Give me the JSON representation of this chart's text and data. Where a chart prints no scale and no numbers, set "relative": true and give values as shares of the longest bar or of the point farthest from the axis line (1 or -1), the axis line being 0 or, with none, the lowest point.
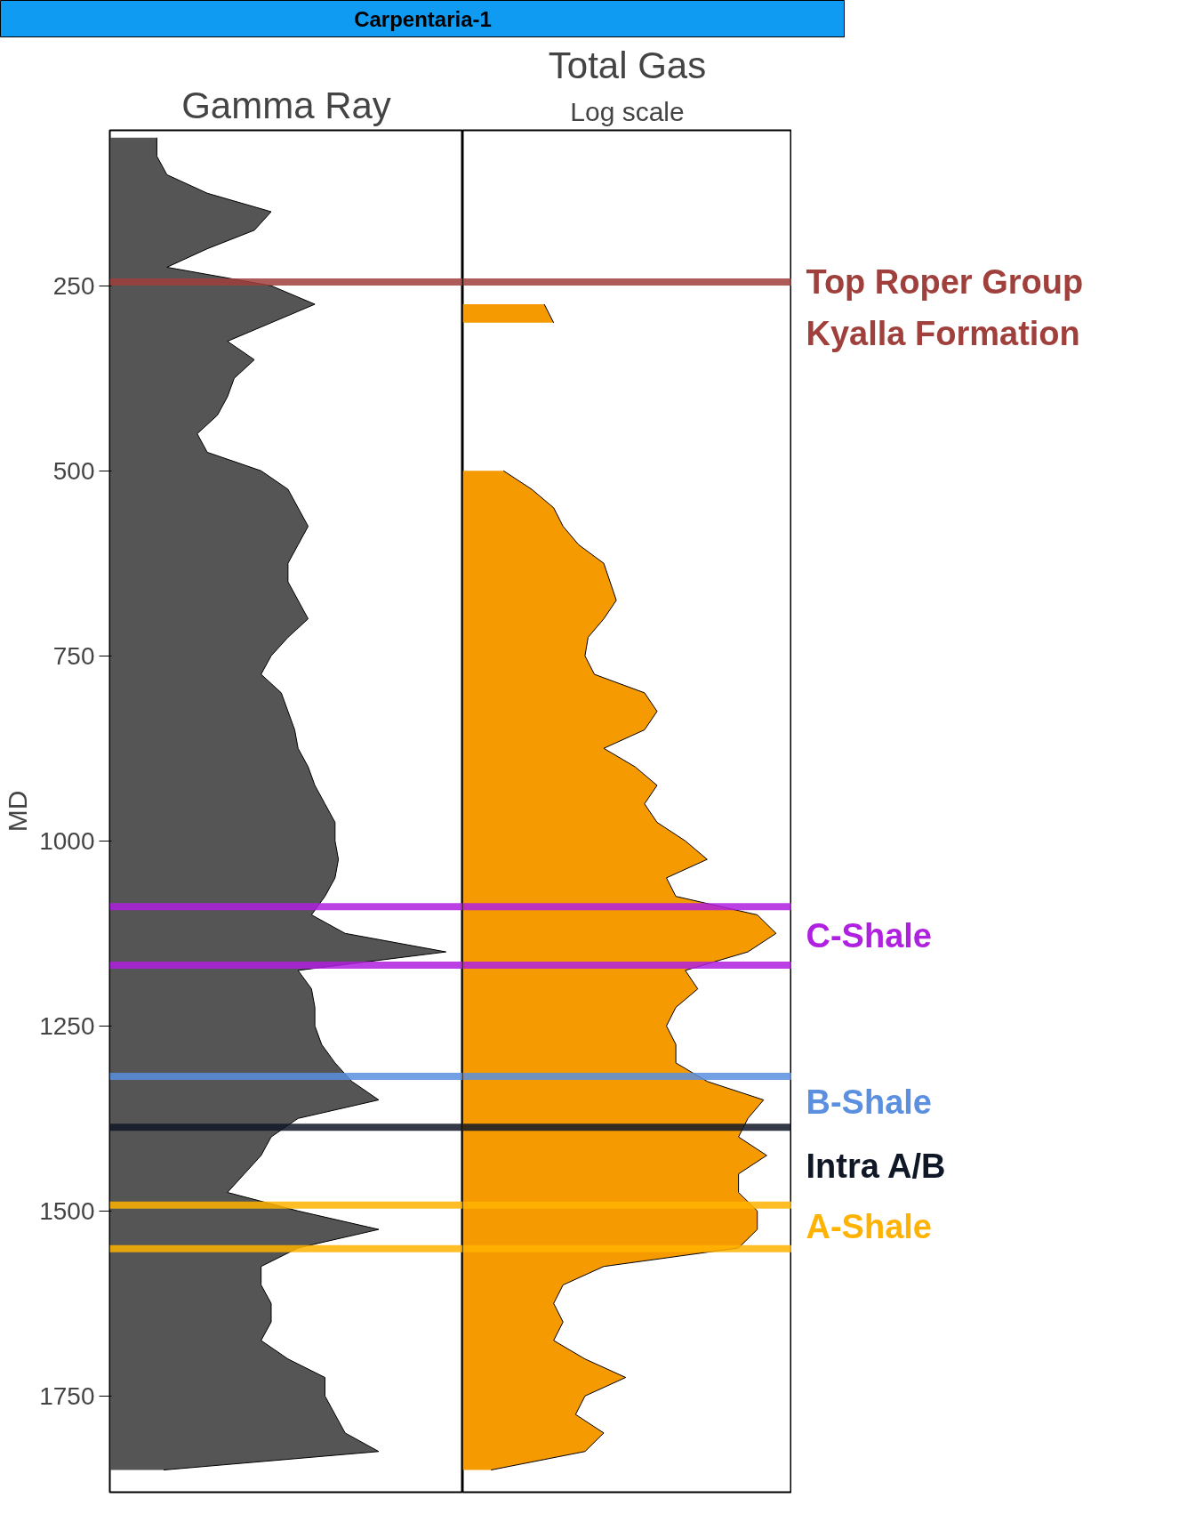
{
  "chart_data": [
    {
      "type": "other",
      "title": "Carpentaria-1",
      "color": "#0f9bf2"
    },
    {
      "type": "area",
      "title": "Gamma Ray",
      "ylabel": "MD",
      "orientation": "horizontal",
      "relative": true,
      "ylim": [
        1880,
        40
      ],
      "yticks": [
        250,
        500,
        750,
        1000,
        1250,
        1500,
        1750
      ],
      "x": [
        50,
        75,
        100,
        125,
        150,
        175,
        200,
        225,
        250,
        275,
        300,
        325,
        350,
        375,
        400,
        425,
        450,
        475,
        500,
        525,
        550,
        575,
        600,
        625,
        650,
        675,
        700,
        725,
        750,
        775,
        800,
        825,
        850,
        875,
        900,
        925,
        950,
        975,
        1000,
        1025,
        1050,
        1075,
        1100,
        1125,
        1150,
        1175,
        1200,
        1225,
        1250,
        1275,
        1300,
        1325,
        1350,
        1375,
        1400,
        1425,
        1450,
        1475,
        1500,
        1525,
        1550,
        1575,
        1600,
        1625,
        1650,
        1675,
        1700,
        1725,
        1750,
        1775,
        1800,
        1825,
        1850
      ],
      "series": [
        {
          "color": "#555555",
          "values": [
            0.14,
            0.14,
            0.17,
            0.29,
            0.48,
            0.43,
            0.29,
            0.17,
            0.48,
            0.61,
            0.48,
            0.35,
            0.43,
            0.37,
            0.35,
            0.32,
            0.26,
            0.29,
            0.45,
            0.53,
            0.56,
            0.59,
            0.56,
            0.53,
            0.53,
            0.56,
            0.59,
            0.53,
            0.48,
            0.45,
            0.51,
            0.53,
            0.55,
            0.56,
            0.59,
            0.61,
            0.64,
            0.67,
            0.67,
            0.68,
            0.67,
            0.64,
            0.6,
            0.7,
            1.0,
            0.56,
            0.6,
            0.61,
            0.61,
            0.63,
            0.67,
            0.72,
            0.8,
            0.56,
            0.48,
            0.45,
            0.4,
            0.35,
            0.56,
            0.8,
            0.56,
            0.45,
            0.45,
            0.48,
            0.48,
            0.45,
            0.53,
            0.64,
            0.64,
            0.67,
            0.7,
            0.8,
            0.16
          ]
        }
      ],
      "ref_lines": [
        {
          "axis": "y",
          "value": 245,
          "color": "#a0403c"
        },
        {
          "axis": "y",
          "value": 1089,
          "color": "#b020e0"
        },
        {
          "axis": "y",
          "value": 1168,
          "color": "#b020e0"
        },
        {
          "axis": "y",
          "value": 1318,
          "color": "#5b8fe0"
        },
        {
          "axis": "y",
          "value": 1387,
          "color": "#101828"
        },
        {
          "axis": "y",
          "value": 1492,
          "color": "#ffb300"
        },
        {
          "axis": "y",
          "value": 1551,
          "color": "#ffb300"
        }
      ]
    },
    {
      "type": "area",
      "title": "Total Gas",
      "subtitle": "Log scale",
      "orientation": "horizontal",
      "relative": true,
      "tick_labels": false,
      "ylim": [
        1880,
        40
      ],
      "x": [
        275,
        300,
        325,
        350,
        375,
        400,
        425,
        450,
        475,
        500,
        525,
        550,
        575,
        600,
        625,
        650,
        675,
        700,
        725,
        750,
        775,
        800,
        825,
        850,
        875,
        900,
        925,
        950,
        975,
        1000,
        1025,
        1050,
        1075,
        1100,
        1125,
        1150,
        1175,
        1200,
        1225,
        1250,
        1275,
        1300,
        1325,
        1350,
        1375,
        1400,
        1425,
        1450,
        1475,
        1500,
        1525,
        1550,
        1575,
        1600,
        1625,
        1650,
        1675,
        1700,
        1725,
        1750,
        1775,
        1800,
        1825,
        1850
      ],
      "series": [
        {
          "color": "#f59a00",
          "values": [
            0.26,
            0.29,
            null,
            null,
            null,
            null,
            null,
            null,
            null,
            0.13,
            0.22,
            0.29,
            0.32,
            0.37,
            0.45,
            0.47,
            0.49,
            0.45,
            0.4,
            0.39,
            0.42,
            0.58,
            0.62,
            0.58,
            0.45,
            0.55,
            0.62,
            0.58,
            0.62,
            0.71,
            0.78,
            0.65,
            0.68,
            0.94,
            1.0,
            0.91,
            0.71,
            0.75,
            0.68,
            0.65,
            0.68,
            0.68,
            0.78,
            0.96,
            0.91,
            0.88,
            0.97,
            0.88,
            0.88,
            0.94,
            0.94,
            0.88,
            0.45,
            0.32,
            0.29,
            0.32,
            0.29,
            0.39,
            0.52,
            0.39,
            0.36,
            0.45,
            0.39,
            0.09
          ]
        }
      ],
      "ref_lines": [
        {
          "axis": "y",
          "value": 245,
          "label": "Top Roper Group",
          "color": "#a0403c"
        },
        {
          "axis": "y",
          "value": 1089,
          "label": "C-Shale",
          "color": "#b020e0"
        },
        {
          "axis": "y",
          "value": 1168,
          "color": "#b020e0"
        },
        {
          "axis": "y",
          "value": 1318,
          "label": "B-Shale",
          "color": "#5b8fe0"
        },
        {
          "axis": "y",
          "value": 1387,
          "label": "Intra A/B",
          "color": "#101828"
        },
        {
          "axis": "y",
          "value": 1492,
          "label": "A-Shale",
          "color": "#ffb300"
        },
        {
          "axis": "y",
          "value": 1551,
          "color": "#ffb300"
        }
      ],
      "annotations": [
        "Kyalla Formation"
      ]
    }
  ]
}
